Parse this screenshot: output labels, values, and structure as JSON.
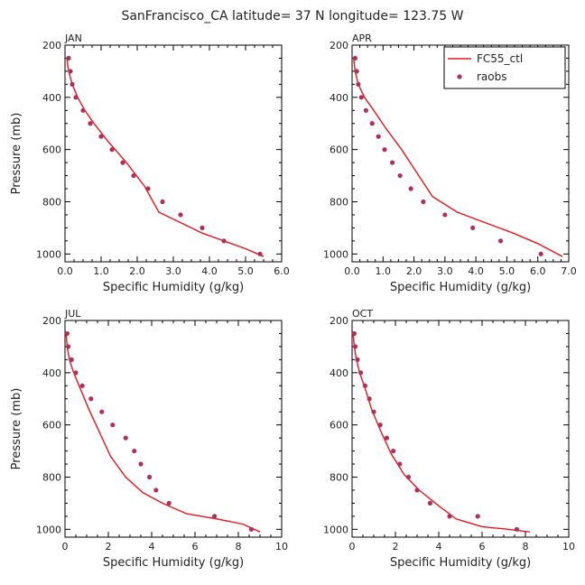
{
  "figure": {
    "title": "SanFrancisco_CA  latitude= 37 N longitude= 123.75 W",
    "legend": {
      "placement": "top-right of APR panel",
      "model_label": "FC55_ctl",
      "obs_label": "raobs",
      "model_color": "#e8141e",
      "obs_color": "#b0305a"
    }
  },
  "chart_data": [
    {
      "type": "line",
      "panel_label": "JAN",
      "xlabel": "Specific Humidity (g/kg)",
      "ylabel": "Pressure (mb)",
      "xlim": [
        0,
        6
      ],
      "ylim": [
        200,
        1030
      ],
      "y_inverted": true,
      "xticks": [
        0,
        1,
        2,
        3,
        4,
        5,
        6
      ],
      "xtick_labels": [
        "0.0",
        "1.0",
        "2.0",
        "3.0",
        "4.0",
        "5.0",
        "6.0"
      ],
      "yticks": [
        200,
        400,
        600,
        800,
        1000
      ],
      "series": [
        {
          "name": "FC55_ctl",
          "kind": "line",
          "x": [
            0.05,
            0.1,
            0.2,
            0.35,
            0.55,
            0.8,
            1.2,
            1.7,
            2.2,
            2.6,
            3.2,
            3.8,
            4.4,
            5.0,
            5.5
          ],
          "y": [
            250,
            300,
            350,
            400,
            450,
            500,
            570,
            650,
            740,
            840,
            880,
            920,
            950,
            980,
            1010
          ]
        },
        {
          "name": "raobs",
          "kind": "scatter",
          "x": [
            0.1,
            0.15,
            0.2,
            0.3,
            0.5,
            0.7,
            1.0,
            1.3,
            1.6,
            1.9,
            2.3,
            2.7,
            3.2,
            3.8,
            4.4,
            5.4
          ],
          "y": [
            250,
            300,
            350,
            400,
            450,
            500,
            550,
            600,
            650,
            700,
            750,
            800,
            850,
            900,
            950,
            1000
          ]
        }
      ]
    },
    {
      "type": "line",
      "panel_label": "APR",
      "xlabel": "Specific Humidity (g/kg)",
      "ylabel": "",
      "xlim": [
        0,
        7
      ],
      "ylim": [
        200,
        1030
      ],
      "y_inverted": true,
      "xticks": [
        0,
        1,
        2,
        3,
        4,
        5,
        6,
        7
      ],
      "xtick_labels": [
        "0.0",
        "1.0",
        "2.0",
        "3.0",
        "4.0",
        "5.0",
        "6.0",
        "7.0"
      ],
      "yticks": [
        200,
        400,
        600,
        800,
        1000
      ],
      "series": [
        {
          "name": "FC55_ctl",
          "kind": "line",
          "x": [
            0.05,
            0.1,
            0.2,
            0.4,
            0.7,
            1.1,
            1.6,
            2.1,
            2.6,
            3.4,
            4.3,
            5.2,
            6.0,
            6.8
          ],
          "y": [
            250,
            300,
            350,
            400,
            450,
            520,
            600,
            690,
            780,
            840,
            880,
            920,
            960,
            1010
          ]
        },
        {
          "name": "raobs",
          "kind": "scatter",
          "x": [
            0.1,
            0.15,
            0.2,
            0.3,
            0.45,
            0.65,
            0.85,
            1.05,
            1.3,
            1.55,
            1.9,
            2.3,
            3.0,
            3.9,
            4.8,
            6.1
          ],
          "y": [
            250,
            300,
            350,
            400,
            450,
            500,
            550,
            600,
            650,
            700,
            750,
            800,
            850,
            900,
            950,
            1000
          ]
        }
      ]
    },
    {
      "type": "line",
      "panel_label": "JUL",
      "xlabel": "Specific Humidity (g/kg)",
      "ylabel": "Pressure (mb)",
      "xlim": [
        0,
        10
      ],
      "ylim": [
        200,
        1030
      ],
      "y_inverted": true,
      "xticks": [
        0,
        2,
        4,
        6,
        8,
        10
      ],
      "xtick_labels": [
        "0",
        "2",
        "4",
        "6",
        "8",
        "10"
      ],
      "yticks": [
        200,
        400,
        600,
        800,
        1000
      ],
      "series": [
        {
          "name": "FC55_ctl",
          "kind": "line",
          "x": [
            0.05,
            0.1,
            0.2,
            0.4,
            0.7,
            1.1,
            1.6,
            2.1,
            2.8,
            3.6,
            4.5,
            5.6,
            7.0,
            8.2,
            9.0
          ],
          "y": [
            250,
            300,
            350,
            400,
            460,
            540,
            630,
            720,
            800,
            860,
            900,
            940,
            960,
            980,
            1010
          ]
        },
        {
          "name": "raobs",
          "kind": "scatter",
          "x": [
            0.1,
            0.15,
            0.3,
            0.5,
            0.8,
            1.2,
            1.7,
            2.2,
            2.8,
            3.2,
            3.5,
            3.9,
            4.2,
            4.8,
            6.9,
            8.6
          ],
          "y": [
            250,
            300,
            350,
            400,
            450,
            500,
            550,
            600,
            650,
            700,
            750,
            800,
            850,
            900,
            950,
            1000
          ]
        }
      ]
    },
    {
      "type": "line",
      "panel_label": "OCT",
      "xlabel": "Specific Humidity (g/kg)",
      "ylabel": "",
      "xlim": [
        0,
        10
      ],
      "ylim": [
        200,
        1030
      ],
      "y_inverted": true,
      "xticks": [
        0,
        2,
        4,
        6,
        8,
        10
      ],
      "xtick_labels": [
        "0",
        "2",
        "4",
        "6",
        "8",
        "10"
      ],
      "yticks": [
        200,
        400,
        600,
        800,
        1000
      ],
      "series": [
        {
          "name": "FC55_ctl",
          "kind": "line",
          "x": [
            0.05,
            0.1,
            0.2,
            0.35,
            0.6,
            0.9,
            1.3,
            1.8,
            2.4,
            3.1,
            4.0,
            4.8,
            6.0,
            7.2,
            8.2
          ],
          "y": [
            250,
            300,
            350,
            400,
            460,
            540,
            620,
            710,
            790,
            850,
            910,
            960,
            990,
            1000,
            1010
          ]
        },
        {
          "name": "raobs",
          "kind": "scatter",
          "x": [
            0.1,
            0.15,
            0.25,
            0.4,
            0.6,
            0.8,
            1.0,
            1.3,
            1.6,
            1.9,
            2.2,
            2.6,
            3.0,
            3.6,
            4.5,
            5.8,
            7.6
          ],
          "y": [
            250,
            300,
            350,
            400,
            450,
            500,
            550,
            600,
            650,
            700,
            750,
            800,
            850,
            900,
            950,
            950,
            1000
          ]
        }
      ]
    }
  ]
}
